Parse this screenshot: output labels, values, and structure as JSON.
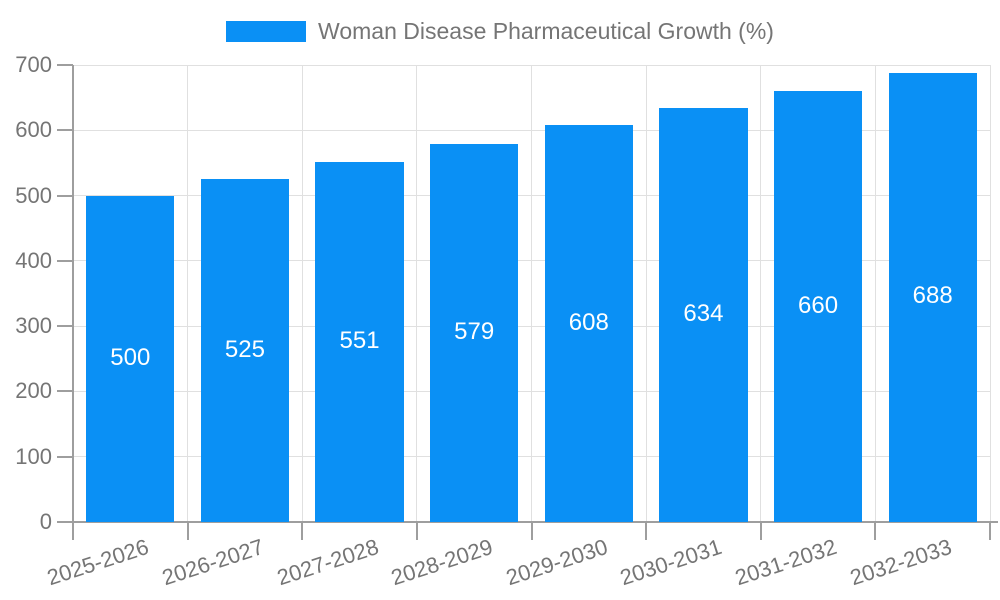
{
  "legend": {
    "position": "top"
  },
  "chart_data": {
    "type": "bar",
    "title": "Woman Disease Pharmaceutical Growth (%)",
    "categories": [
      "2025-2026",
      "2026-2027",
      "2027-2028",
      "2028-2029",
      "2029-2030",
      "2030-2031",
      "2031-2032",
      "2032-2033"
    ],
    "series": [
      {
        "name": "Woman Disease Pharmaceutical Growth (%)",
        "values": [
          500,
          525,
          551,
          579,
          608,
          634,
          660,
          688
        ]
      }
    ],
    "value_labels": [
      "500",
      "525",
      "551",
      "579",
      "608",
      "634",
      "660",
      "688"
    ],
    "ylim": [
      0,
      700
    ],
    "yticks": [
      0,
      100,
      200,
      300,
      400,
      500,
      600,
      700
    ],
    "xlabel": "",
    "ylabel": "",
    "grid": true,
    "legend_position": "top",
    "x_label_rotation_deg": -18,
    "colors": {
      "bar": "#0a90f5",
      "grid": "#e0e0e0",
      "axis": "#9e9e9e",
      "text": "#757575",
      "value_label": "#ffffff",
      "background": "#ffffff"
    }
  }
}
